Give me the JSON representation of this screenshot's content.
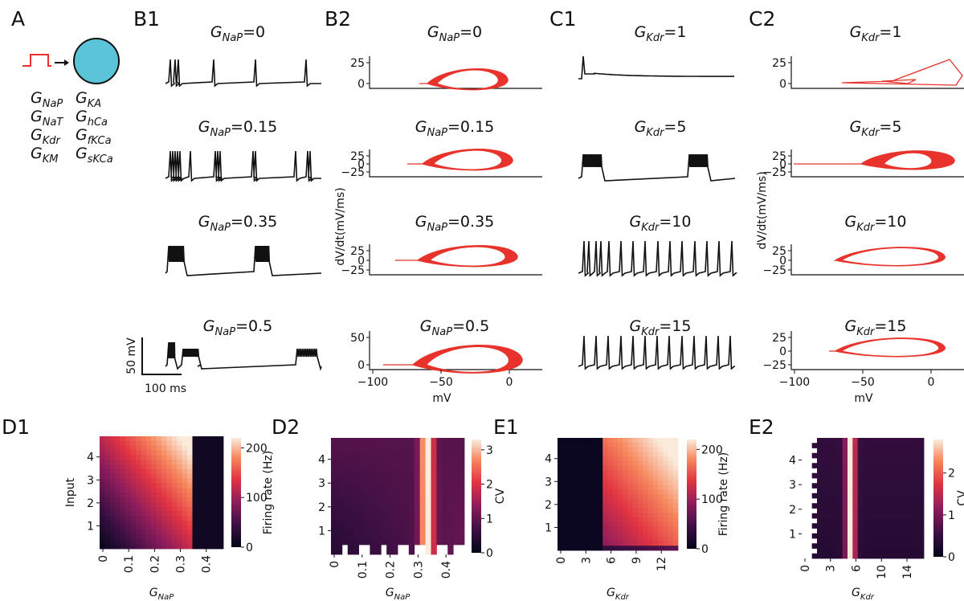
{
  "panels": {
    "A": "A",
    "B1": "B1",
    "B2": "B2",
    "C1": "C1",
    "C2": "C2",
    "D1": "D1",
    "D2": "D2",
    "E1": "E1",
    "E2": "E2"
  },
  "conductances": [
    {
      "base": "G",
      "sub": "NaP"
    },
    {
      "base": "G",
      "sub": "KA"
    },
    {
      "base": "G",
      "sub": "NaT"
    },
    {
      "base": "G",
      "sub": "hCa"
    },
    {
      "base": "G",
      "sub": "Kdr"
    },
    {
      "base": "G",
      "sub": "fKCa"
    },
    {
      "base": "G",
      "sub": "KM"
    },
    {
      "base": "G",
      "sub": "sKCa"
    }
  ],
  "B_titles": [
    {
      "base": "G",
      "sub": "NaP",
      "value": "=0"
    },
    {
      "base": "G",
      "sub": "NaP",
      "value": "=0.15"
    },
    {
      "base": "G",
      "sub": "NaP",
      "value": "=0.35"
    },
    {
      "base": "G",
      "sub": "NaP",
      "value": "=0.5"
    }
  ],
  "C_titles": [
    {
      "base": "G",
      "sub": "Kdr",
      "value": "=1"
    },
    {
      "base": "G",
      "sub": "Kdr",
      "value": "=5"
    },
    {
      "base": "G",
      "sub": "Kdr",
      "value": "=10"
    },
    {
      "base": "G",
      "sub": "Kdr",
      "value": "=15"
    }
  ],
  "scalebar": {
    "voltage": "50 mV",
    "time": "100 ms"
  },
  "phase": {
    "ylabel": "dV/dt(mV/ms)",
    "xlabel": "mV",
    "xticks": [
      "−100",
      "−50",
      "0"
    ],
    "B2_yticks": [
      [
        "25",
        "0"
      ],
      [
        "25",
        "0",
        "−25"
      ],
      [
        "25",
        "0",
        "−25"
      ],
      [
        "50",
        "0"
      ]
    ],
    "C2_yticks": [
      [
        "25",
        "0"
      ],
      [
        "25",
        "0",
        "−25"
      ],
      [
        "25",
        "0",
        "−25"
      ],
      [
        "25",
        "0",
        "−25"
      ]
    ]
  },
  "colors": {
    "trace": "#111111",
    "phase": "#e8322c",
    "neuron": "#5bc4d8",
    "step": "#e8322c"
  },
  "chart_data": [
    {
      "type": "heatmap",
      "panel": "D1",
      "xlabel_base": "G",
      "xlabel_sub": "NaP",
      "ylabel": "Input",
      "xticks": [
        "0",
        "0.1",
        "0.2",
        "0.3",
        "0.4"
      ],
      "yticks": [
        "1",
        "2",
        "3",
        "4"
      ],
      "cbar_label": "Firing rate (Hz)",
      "cbar_ticks": [
        "200",
        "100",
        "0"
      ],
      "cbar_range": [
        0,
        220
      ],
      "xlim": [
        0,
        0.5
      ],
      "ylim": [
        0,
        4.9
      ]
    },
    {
      "type": "heatmap",
      "panel": "D2",
      "xlabel_base": "G",
      "xlabel_sub": "NaP",
      "ylabel": "",
      "xticks": [
        "0",
        "0.1",
        "0.2",
        "0.3",
        "0.4"
      ],
      "yticks": [
        "1",
        "2",
        "3",
        "4"
      ],
      "cbar_label": "CV",
      "cbar_ticks": [
        "3",
        "2",
        "1",
        "0"
      ],
      "cbar_range": [
        0,
        3.3
      ],
      "xlim": [
        0,
        0.5
      ],
      "ylim": [
        0,
        4.9
      ]
    },
    {
      "type": "heatmap",
      "panel": "E1",
      "xlabel_base": "G",
      "xlabel_sub": "Kdr",
      "ylabel": "",
      "xticks": [
        "0",
        "3",
        "6",
        "9",
        "12"
      ],
      "yticks": [
        "1",
        "2",
        "3",
        "4"
      ],
      "cbar_label": "Firing rate (Hz)",
      "cbar_ticks": [
        "200",
        "100",
        "0"
      ],
      "cbar_range": [
        0,
        220
      ],
      "xlim": [
        0,
        15
      ],
      "ylim": [
        0,
        4.9
      ]
    },
    {
      "type": "heatmap",
      "panel": "E2",
      "xlabel_base": "G",
      "xlabel_sub": "Kdr",
      "ylabel": "",
      "xticks": [
        "0",
        "3",
        "6",
        "10",
        "14"
      ],
      "yticks": [
        "1",
        "2",
        "3",
        "4"
      ],
      "cbar_label": "CV",
      "cbar_ticks": [
        "2",
        "1",
        "0"
      ],
      "cbar_range": [
        0,
        2.8
      ],
      "xlim": [
        0,
        15
      ],
      "ylim": [
        0,
        4.9
      ]
    }
  ]
}
